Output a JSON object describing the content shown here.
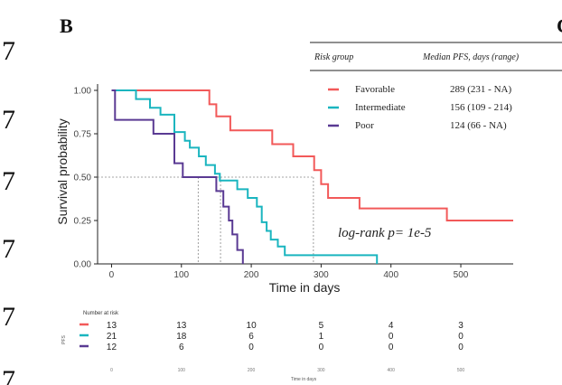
{
  "figure": {
    "panel_letter": "B",
    "panel_letter_right": "C",
    "side_glyph": "7"
  },
  "legend_table": {
    "header_group": "Risk group",
    "header_median": "Median PFS, days (range)",
    "rows": [
      {
        "label": "Favorable",
        "median": "289 (231 - NA)",
        "color": "#f25959"
      },
      {
        "label": "Intermediate",
        "median": "156 (109 - 214)",
        "color": "#1ab5bf"
      },
      {
        "label": "Poor",
        "median": "124 (66 - NA)",
        "color": "#5a3a93"
      }
    ]
  },
  "annotation": "log-rank p= 1e-5",
  "chart_data": {
    "type": "line",
    "ylabel": "Survival probability",
    "xlabel": "Time in days",
    "xlim": [
      -20,
      575
    ],
    "ylim": [
      0,
      1
    ],
    "x_ticks": [
      0,
      100,
      200,
      300,
      400,
      500
    ],
    "y_ticks": [
      "0.00",
      "0.25",
      "0.50",
      "0.75",
      "1.00"
    ],
    "y_tick_values": [
      0,
      0.25,
      0.5,
      0.75,
      1.0
    ],
    "grid": false,
    "step": true,
    "series": [
      {
        "name": "Favorable",
        "color": "#f25959",
        "points": [
          [
            0,
            1.0
          ],
          [
            140,
            1.0
          ],
          [
            140,
            0.92
          ],
          [
            150,
            0.92
          ],
          [
            150,
            0.85
          ],
          [
            170,
            0.85
          ],
          [
            170,
            0.77
          ],
          [
            230,
            0.77
          ],
          [
            230,
            0.69
          ],
          [
            260,
            0.69
          ],
          [
            260,
            0.62
          ],
          [
            290,
            0.62
          ],
          [
            290,
            0.54
          ],
          [
            300,
            0.54
          ],
          [
            300,
            0.46
          ],
          [
            310,
            0.46
          ],
          [
            310,
            0.38
          ],
          [
            355,
            0.38
          ],
          [
            355,
            0.32
          ],
          [
            480,
            0.32
          ],
          [
            480,
            0.25
          ],
          [
            575,
            0.25
          ]
        ]
      },
      {
        "name": "Intermediate",
        "color": "#1ab5bf",
        "points": [
          [
            0,
            1.0
          ],
          [
            35,
            1.0
          ],
          [
            35,
            0.95
          ],
          [
            55,
            0.95
          ],
          [
            55,
            0.9
          ],
          [
            70,
            0.9
          ],
          [
            70,
            0.86
          ],
          [
            90,
            0.86
          ],
          [
            90,
            0.76
          ],
          [
            105,
            0.76
          ],
          [
            105,
            0.71
          ],
          [
            112,
            0.71
          ],
          [
            112,
            0.67
          ],
          [
            125,
            0.67
          ],
          [
            125,
            0.62
          ],
          [
            135,
            0.62
          ],
          [
            135,
            0.57
          ],
          [
            148,
            0.57
          ],
          [
            148,
            0.52
          ],
          [
            155,
            0.52
          ],
          [
            155,
            0.48
          ],
          [
            180,
            0.48
          ],
          [
            180,
            0.43
          ],
          [
            195,
            0.43
          ],
          [
            195,
            0.38
          ],
          [
            208,
            0.38
          ],
          [
            208,
            0.33
          ],
          [
            215,
            0.33
          ],
          [
            215,
            0.24
          ],
          [
            222,
            0.24
          ],
          [
            222,
            0.19
          ],
          [
            228,
            0.19
          ],
          [
            228,
            0.14
          ],
          [
            238,
            0.14
          ],
          [
            238,
            0.1
          ],
          [
            248,
            0.1
          ],
          [
            248,
            0.05
          ],
          [
            380,
            0.05
          ],
          [
            380,
            0.0
          ]
        ]
      },
      {
        "name": "Poor",
        "color": "#5a3a93",
        "points": [
          [
            0,
            1.0
          ],
          [
            5,
            1.0
          ],
          [
            5,
            0.83
          ],
          [
            60,
            0.83
          ],
          [
            60,
            0.75
          ],
          [
            90,
            0.75
          ],
          [
            90,
            0.58
          ],
          [
            102,
            0.58
          ],
          [
            102,
            0.5
          ],
          [
            150,
            0.5
          ],
          [
            150,
            0.42
          ],
          [
            160,
            0.42
          ],
          [
            160,
            0.33
          ],
          [
            168,
            0.33
          ],
          [
            168,
            0.25
          ],
          [
            173,
            0.25
          ],
          [
            173,
            0.17
          ],
          [
            180,
            0.17
          ],
          [
            180,
            0.08
          ],
          [
            188,
            0.08
          ],
          [
            188,
            0.0
          ]
        ]
      }
    ],
    "median_reference": {
      "y": 0.5,
      "x_drops": [
        124,
        156,
        289
      ]
    },
    "risk_table": {
      "title": "Number at risk",
      "row_axis_label": "PFS",
      "xlabel": "Time in days",
      "time_points": [
        0,
        100,
        200,
        300,
        400,
        500
      ],
      "x_ticks": [
        "0",
        "100",
        "200",
        "300",
        "400",
        "500"
      ],
      "rows": [
        {
          "name": "Favorable",
          "color": "#f25959",
          "values": [
            13,
            13,
            10,
            5,
            4,
            3
          ]
        },
        {
          "name": "Intermediate",
          "color": "#1ab5bf",
          "values": [
            21,
            18,
            6,
            1,
            0,
            0
          ]
        },
        {
          "name": "Poor",
          "color": "#5a3a93",
          "values": [
            12,
            6,
            0,
            0,
            0,
            0
          ]
        }
      ]
    }
  }
}
